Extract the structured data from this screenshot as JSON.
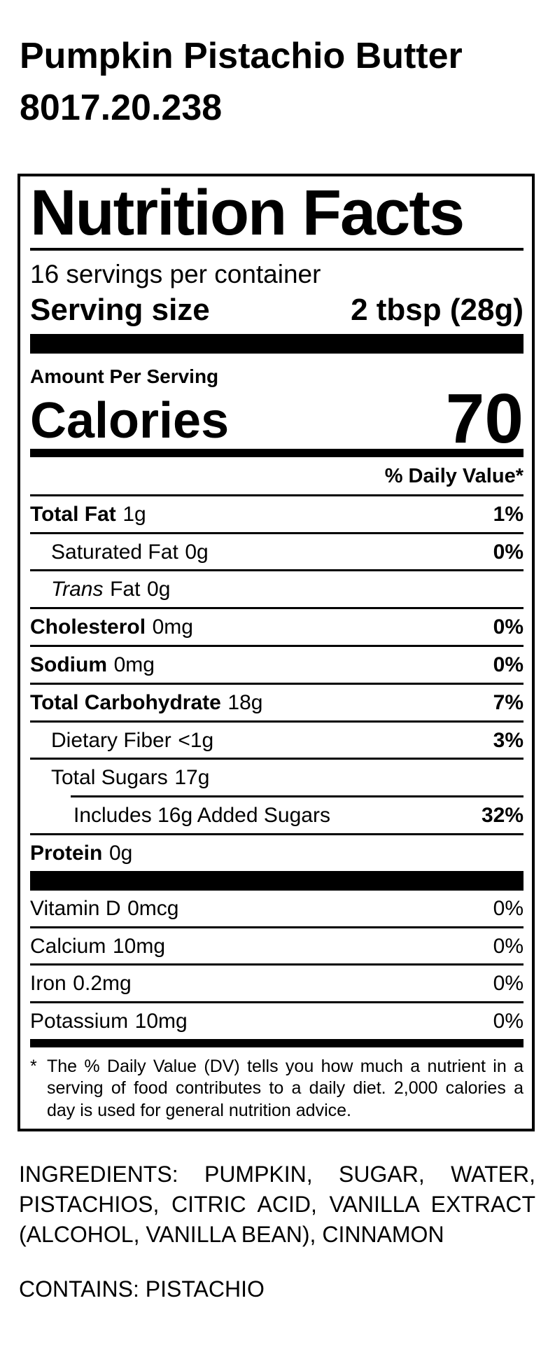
{
  "colors": {
    "text": "#000000",
    "background": "#ffffff"
  },
  "product": {
    "title": "Pumpkin Pistachio Butter",
    "code": "8017.20.238"
  },
  "label": {
    "title": "Nutrition Facts",
    "servings_per_container": "16 servings per container",
    "serving_size_label": "Serving size",
    "serving_size_value": "2 tbsp (28g)",
    "amount_per_serving": "Amount Per Serving",
    "calories_label": "Calories",
    "calories_value": "70",
    "daily_value_header": "% Daily Value*",
    "rows": [
      {
        "name": "Total Fat",
        "amount": "1g",
        "dv": "1%"
      },
      {
        "name": "Saturated Fat",
        "amount": "0g",
        "dv": "0%"
      },
      {
        "name_italic": "Trans",
        "name": "Fat",
        "amount": "0g",
        "dv": ""
      },
      {
        "name": "Cholesterol",
        "amount": "0mg",
        "dv": "0%"
      },
      {
        "name": "Sodium",
        "amount": "0mg",
        "dv": "0%"
      },
      {
        "name": "Total Carbohydrate",
        "amount": "18g",
        "dv": "7%"
      },
      {
        "name": "Dietary Fiber",
        "amount": "<1g",
        "dv": "3%"
      },
      {
        "name": "Total Sugars",
        "amount": "17g",
        "dv": ""
      },
      {
        "name": "Includes 16g Added Sugars",
        "amount": "",
        "dv": "32%"
      },
      {
        "name": "Protein",
        "amount": "0g",
        "dv": ""
      }
    ],
    "vitamins": [
      {
        "name": "Vitamin D",
        "amount": "0mcg",
        "dv": "0%"
      },
      {
        "name": "Calcium",
        "amount": "10mg",
        "dv": "0%"
      },
      {
        "name": "Iron",
        "amount": "0.2mg",
        "dv": "0%"
      },
      {
        "name": "Potassium",
        "amount": "10mg",
        "dv": "0%"
      }
    ],
    "footnote_marker": "*",
    "footnote": "The % Daily Value (DV) tells you how much a nutrient in a serving of food contributes to a daily diet. 2,000 calories a day is used for general nutrition advice."
  },
  "ingredients_text": "INGREDIENTS: PUMPKIN, SUGAR, WATER, PISTACHIOS, CITRIC ACID, VANILLA EXTRACT (ALCOHOL, VANILLA BEAN), CINNAMON",
  "contains_text": "CONTAINS: PISTACHIO"
}
